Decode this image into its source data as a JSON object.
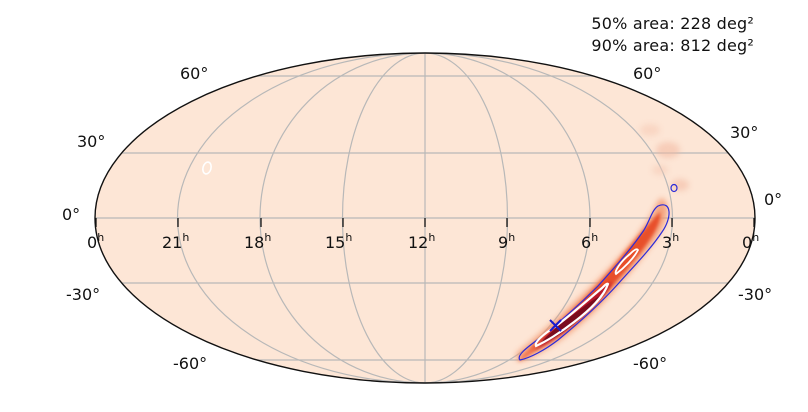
{
  "stats": {
    "area_50": "50% area: 228 deg²",
    "area_90": "90% area: 812 deg²"
  },
  "lat_labels": {
    "p60_left": "60°",
    "p60_right": "60°",
    "p30_left": "30°",
    "p30_right": "30°",
    "zero_left": "0°",
    "zero_right": "0°",
    "m30_left": "-30°",
    "m30_right": "-30°",
    "m60_left": "-60°",
    "m60_right": "-60°"
  },
  "ra_labels": [
    {
      "num": "0",
      "unit": "h"
    },
    {
      "num": "21",
      "unit": "h"
    },
    {
      "num": "18",
      "unit": "h"
    },
    {
      "num": "15",
      "unit": "h"
    },
    {
      "num": "12",
      "unit": "h"
    },
    {
      "num": "9",
      "unit": "h"
    },
    {
      "num": "6",
      "unit": "h"
    },
    {
      "num": "3",
      "unit": "h"
    },
    {
      "num": "0",
      "unit": "h"
    }
  ],
  "colors": {
    "background_prob": "#fde6d6",
    "grid": "#b8b8b8",
    "high_prob": "#7a0c1e",
    "mid_prob": "#e8502a",
    "contour_50": "#ffffff",
    "contour_90": "#2b2bd9",
    "marker": "#1a1acc"
  },
  "projection": "mollweide",
  "marker_icon": "cross-marker"
}
